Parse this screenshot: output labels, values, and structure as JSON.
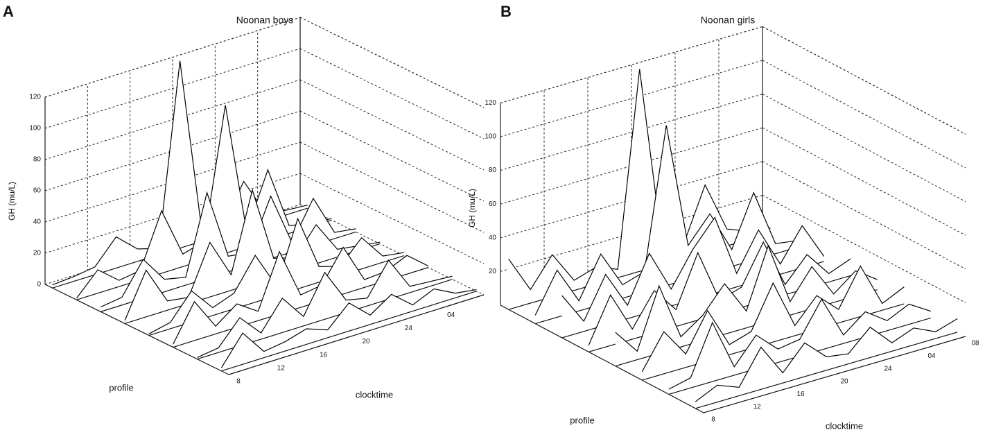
{
  "chart_data": [
    {
      "type": "waterfall3d",
      "panel": "A",
      "title": "Noonan boys",
      "zlabel": "GH (mu/L)",
      "xlabel": "clocktime",
      "ylabel": "profile",
      "x": [
        8,
        10,
        12,
        14,
        16,
        18,
        20,
        22,
        24,
        26,
        28,
        30,
        32
      ],
      "xlim": [
        8,
        32
      ],
      "xticks": [
        8,
        12,
        16,
        20,
        24,
        {
          "value": 28,
          "label": "04"
        }
      ],
      "zlim": [
        0,
        120
      ],
      "zticks": [
        0,
        20,
        40,
        60,
        80,
        100,
        120
      ],
      "grid": true,
      "color": "#000000",
      "series": [
        {
          "values": [
            2,
            3,
            5,
            20,
            8,
            4,
            120,
            10,
            5,
            30,
            6,
            3,
            2
          ]
        },
        {
          "values": [
            1,
            15,
            4,
            6,
            40,
            8,
            12,
            95,
            10,
            45,
            5,
            2,
            1
          ]
        },
        {
          "values": [
            3,
            5,
            25,
            8,
            5,
            55,
            10,
            8,
            40,
            6,
            30,
            4,
            2
          ]
        },
        {
          "values": [
            2,
            30,
            6,
            4,
            35,
            10,
            60,
            12,
            8,
            25,
            5,
            3,
            1
          ]
        },
        {
          "values": [
            1,
            4,
            20,
            5,
            10,
            30,
            6,
            45,
            10,
            6,
            20,
            4,
            2
          ]
        },
        {
          "values": [
            2,
            25,
            5,
            15,
            6,
            40,
            8,
            10,
            30,
            5,
            6,
            12,
            1
          ]
        },
        {
          "values": [
            1,
            3,
            18,
            4,
            22,
            6,
            30,
            8,
            5,
            25,
            4,
            3,
            2
          ]
        },
        {
          "values": [
            2,
            20,
            4,
            6,
            10,
            5,
            18,
            6,
            15,
            4,
            10,
            3,
            1
          ]
        }
      ]
    },
    {
      "type": "waterfall3d",
      "panel": "B",
      "title": "Noonan girls",
      "zlabel": "GH (mu/L)",
      "xlabel": "clocktime",
      "ylabel": "profile",
      "x": [
        8,
        10,
        12,
        14,
        16,
        18,
        20,
        22,
        24,
        26,
        28,
        30,
        32
      ],
      "xlim": [
        8,
        32
      ],
      "xticks": [
        {
          "value": 8,
          "label": "8"
        },
        12,
        16,
        20,
        24,
        {
          "value": 28,
          "label": "04"
        },
        {
          "value": 32,
          "label": "08"
        }
      ],
      "zlim": [
        0,
        120
      ],
      "zticks": [
        20,
        40,
        60,
        80,
        100,
        120
      ],
      "grid": true,
      "color": "#000000",
      "series": [
        {
          "values": [
            30,
            8,
            25,
            6,
            10,
            5,
            120,
            15,
            8,
            40,
            10,
            5,
            3
          ]
        },
        {
          "values": [
            5,
            28,
            6,
            30,
            8,
            12,
            95,
            20,
            35,
            10,
            40,
            6,
            4
          ]
        },
        {
          "values": [
            25,
            6,
            30,
            8,
            35,
            10,
            30,
            45,
            8,
            30,
            6,
            25,
            3
          ]
        },
        {
          "values": [
            4,
            30,
            6,
            25,
            10,
            40,
            8,
            12,
            35,
            6,
            20,
            5,
            10
          ]
        },
        {
          "values": [
            20,
            5,
            40,
            6,
            15,
            30,
            10,
            45,
            8,
            25,
            5,
            15,
            6
          ]
        },
        {
          "values": [
            5,
            25,
            8,
            30,
            6,
            10,
            35,
            6,
            20,
            8,
            30,
            4,
            10
          ]
        },
        {
          "values": [
            3,
            6,
            35,
            5,
            20,
            8,
            10,
            30,
            5,
            15,
            6,
            12,
            4
          ]
        },
        {
          "values": [
            4,
            10,
            5,
            25,
            6,
            20,
            8,
            6,
            18,
            5,
            10,
            4,
            8
          ]
        }
      ]
    }
  ]
}
